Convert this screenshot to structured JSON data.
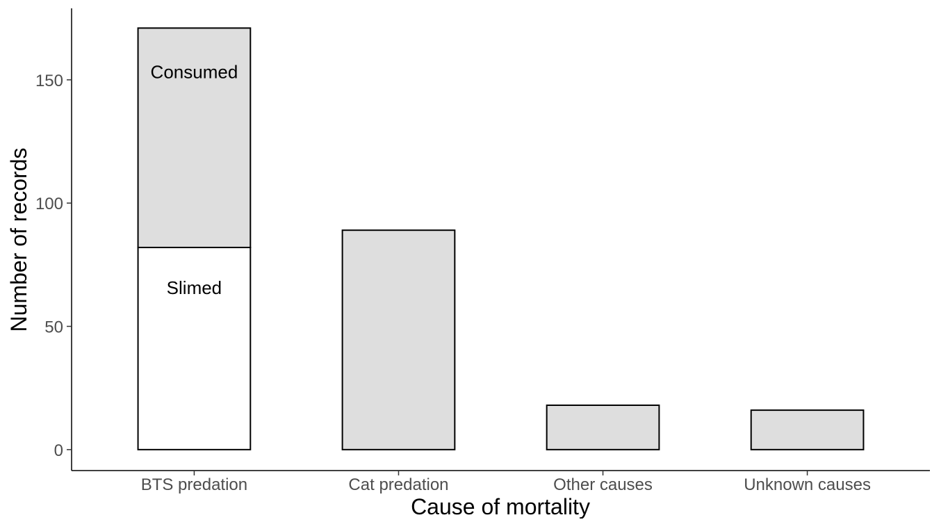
{
  "chart_data": {
    "type": "bar",
    "stacked": true,
    "title": "",
    "xlabel": "Cause of mortality",
    "ylabel": "Number of records",
    "categories": [
      "BTS predation",
      "Cat predation",
      "Other causes",
      "Unknown causes"
    ],
    "series": [
      {
        "name": "Slimed",
        "values": [
          82,
          0,
          0,
          0
        ],
        "color": "#ffffff"
      },
      {
        "name": "Consumed",
        "values": [
          89,
          89,
          18,
          16
        ],
        "color": "#dedede"
      }
    ],
    "segment_labels": [
      {
        "category": "BTS predation",
        "series": "Consumed",
        "text": "Consumed"
      },
      {
        "category": "BTS predation",
        "series": "Slimed",
        "text": "Slimed"
      }
    ],
    "yticks": [
      0,
      50,
      100,
      150
    ],
    "ytick_labels": [
      "0",
      "50",
      "100",
      "150"
    ],
    "ylim": [
      -8.5,
      179
    ],
    "grid": false,
    "legend": "none",
    "bar_outline_color": "#000000"
  }
}
